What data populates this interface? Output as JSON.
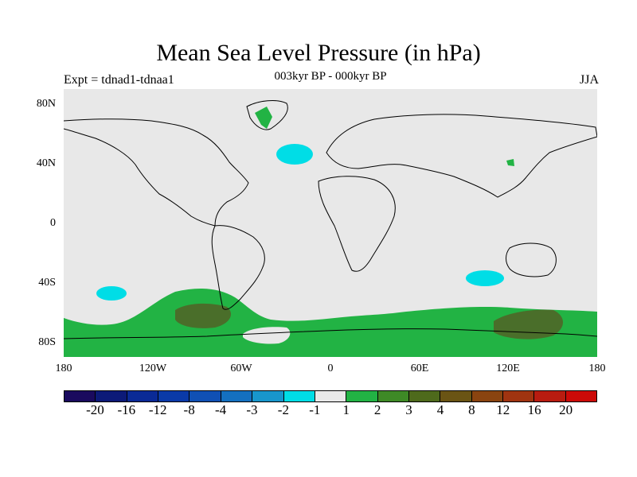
{
  "title": "Mean Sea Level Pressure (in hPa)",
  "subtitle": "003kyr BP - 000kyr BP",
  "left_label": "Expt = tdnad1-tdnaa1",
  "season": "JJA",
  "lat_labels": [
    "80N",
    "40N",
    "0",
    "40S",
    "80S"
  ],
  "lon_labels": [
    "180",
    "120W",
    "60W",
    "0",
    "60E",
    "120E",
    "180"
  ],
  "colorbar": {
    "colors": [
      "#1a0a5e",
      "#0c1a78",
      "#0a2a96",
      "#0a3aa8",
      "#1050b4",
      "#1470c0",
      "#1896cc",
      "#00dde6",
      "#e8e8e8",
      "#22b344",
      "#3e8a26",
      "#4e6a1c",
      "#6a5414",
      "#8a4410",
      "#a03410",
      "#b81c10",
      "#cc0a08"
    ],
    "labels": [
      "-20",
      "-16",
      "-12",
      "-8",
      "-4",
      "-3",
      "-2",
      "-1",
      "1",
      "2",
      "3",
      "4",
      "8",
      "12",
      "16",
      "20"
    ]
  },
  "colors": {
    "background": "#e8e8e8",
    "negative_1": "#00dde6",
    "positive_1": "#22b344",
    "positive_2": "#4a7e2a",
    "positive_3": "#6a6018",
    "ice": "#e8e8e8"
  }
}
